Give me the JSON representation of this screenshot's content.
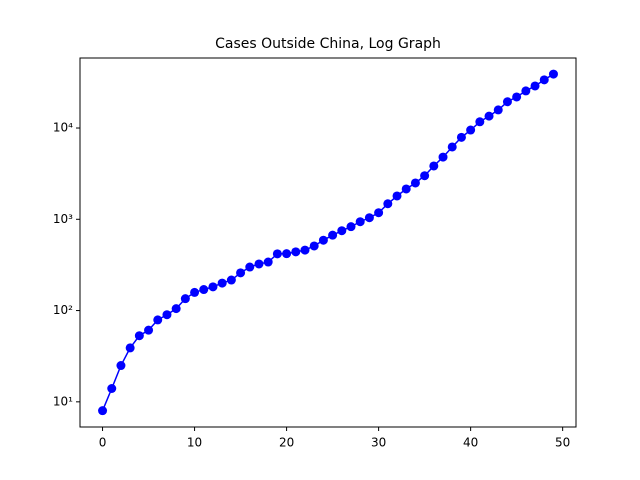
{
  "chart_data": {
    "type": "line",
    "title": "Cases Outside China, Log Graph",
    "x": [
      0,
      1,
      2,
      3,
      4,
      5,
      6,
      7,
      8,
      9,
      10,
      11,
      12,
      13,
      14,
      15,
      16,
      17,
      18,
      19,
      20,
      21,
      22,
      23,
      24,
      25,
      26,
      27,
      28,
      29,
      30,
      31,
      32,
      33,
      34,
      35,
      36,
      37,
      38,
      39,
      40,
      41,
      42,
      43,
      44,
      45,
      46,
      47,
      48,
      49
    ],
    "series": [
      {
        "color": "#0000ff",
        "values": [
          8,
          14,
          25,
          39,
          53,
          61,
          79,
          90,
          105,
          135,
          158,
          170,
          182,
          200,
          216,
          259,
          300,
          324,
          340,
          418,
          420,
          440,
          460,
          510,
          590,
          670,
          750,
          830,
          940,
          1040,
          1180,
          1480,
          1800,
          2150,
          2500,
          3000,
          3840,
          4800,
          6200,
          7900,
          9500,
          11700,
          13500,
          15800,
          19400,
          21900,
          25500,
          28900,
          33700,
          39000
        ]
      }
    ],
    "xlim": [
      -2.45,
      51.45
    ],
    "xticks": [
      0,
      10,
      20,
      30,
      40,
      50
    ],
    "ylim": [
      5.3,
      58500
    ],
    "yscale": "log",
    "yticks": [
      {
        "value": 10,
        "label": "10¹"
      },
      {
        "value": 100,
        "label": "10²"
      },
      {
        "value": 1000,
        "label": "10³"
      },
      {
        "value": 10000,
        "label": "10⁴"
      }
    ]
  }
}
